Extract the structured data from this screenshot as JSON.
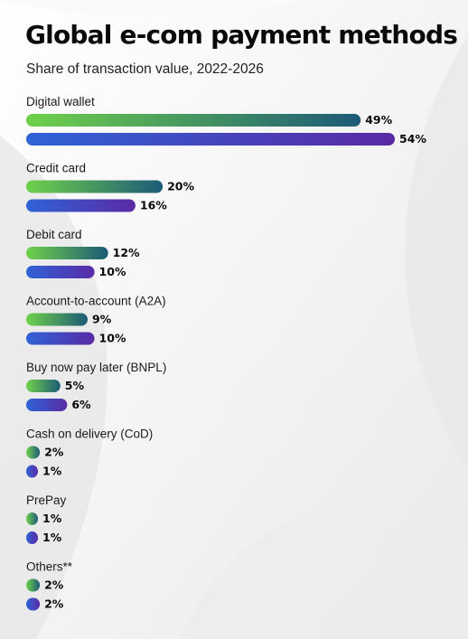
{
  "header": {
    "title": "Global e-com payment methods",
    "subtitle": "Share of transaction value, 2022-2026"
  },
  "colors": {
    "series_2022_start": "#6fd14a",
    "series_2022_end": "#1d5a78",
    "series_2026_start": "#2f63d6",
    "series_2026_end": "#5a2aa6"
  },
  "chart_data": {
    "type": "bar",
    "orientation": "horizontal",
    "title": "Global e-com payment methods",
    "subtitle": "Share of transaction value, 2022-2026",
    "categories": [
      "Digital wallet",
      "Credit card",
      "Debit card",
      "Account-to-account (A2A)",
      "Buy now pay later (BNPL)",
      "Cash on delivery (CoD)",
      "PrePay",
      "Others**"
    ],
    "series": [
      {
        "values": [
          49,
          20,
          12,
          9,
          5,
          2,
          1,
          2
        ],
        "labels": [
          "49%",
          "20%",
          "12%",
          "9%",
          "5%",
          "2%",
          "1%",
          "2%"
        ]
      },
      {
        "values": [
          54,
          16,
          10,
          10,
          6,
          1,
          1,
          2
        ],
        "labels": [
          "54%",
          "16%",
          "10%",
          "10%",
          "6%",
          "1%",
          "1%",
          "2%"
        ]
      }
    ],
    "xlim": [
      0,
      54
    ],
    "grid": false,
    "legend": "none"
  }
}
